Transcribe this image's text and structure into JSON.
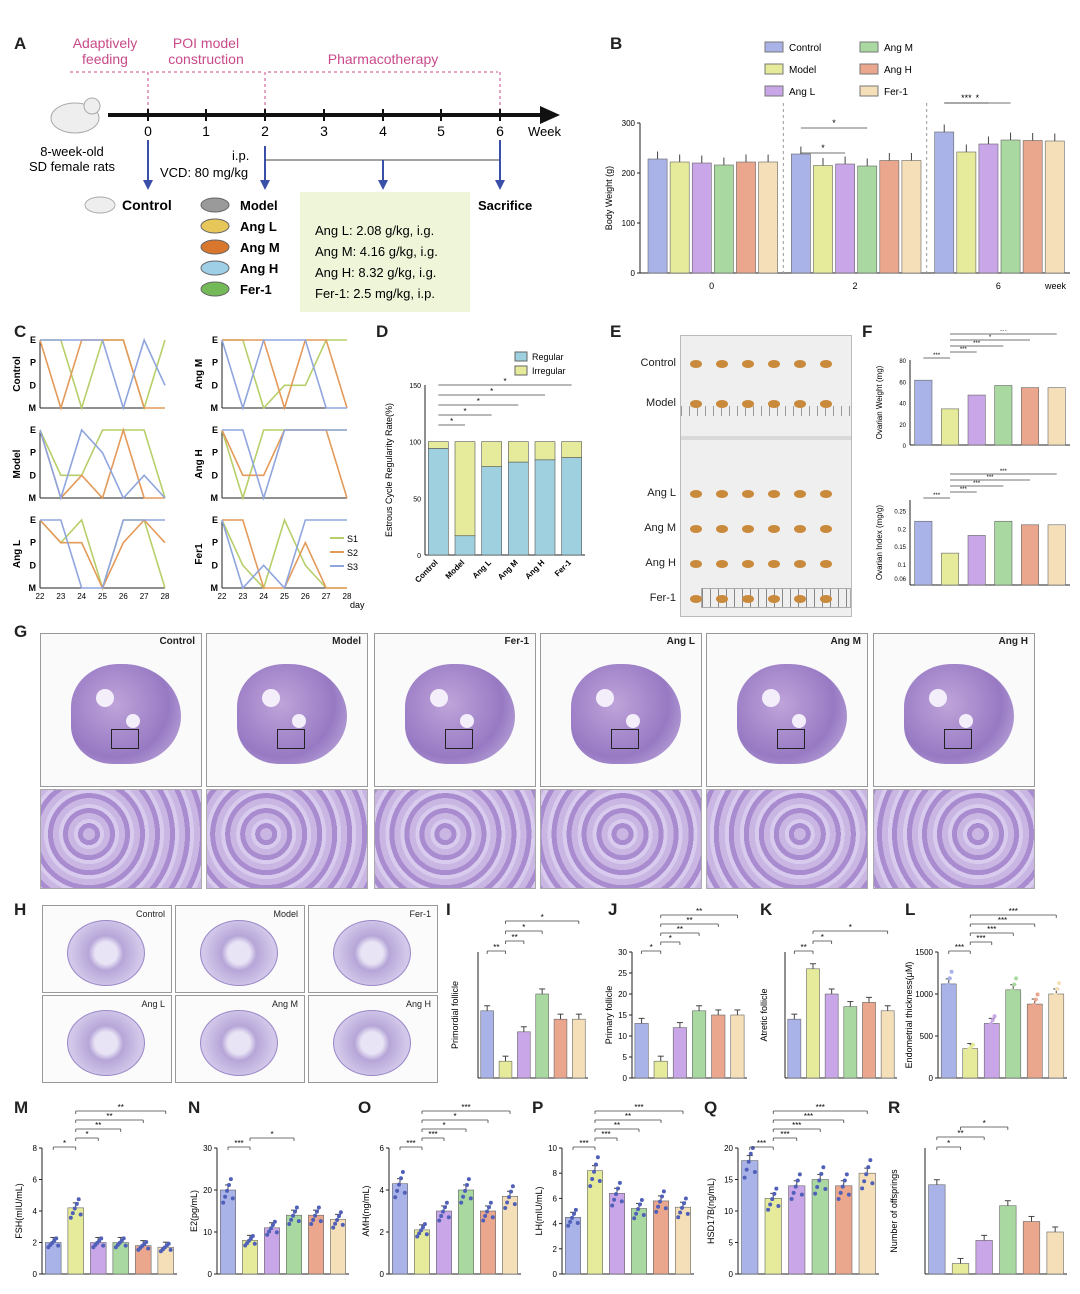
{
  "panel_letters": {
    "A": "A",
    "B": "B",
    "C": "C",
    "D": "D",
    "E": "E",
    "F": "F",
    "G": "G",
    "H": "H",
    "I": "I",
    "J": "J",
    "K": "K",
    "L": "L",
    "M": "M",
    "N": "N",
    "O": "O",
    "P": "P",
    "Q": "Q",
    "R": "R"
  },
  "colors": {
    "control": "#a9b3e8",
    "model": "#e5eb9a",
    "angL": "#c9a6e8",
    "angM": "#a9d9a0",
    "angH": "#eaa78e",
    "fer1": "#f4dfb8",
    "regular": "#9fd0e0",
    "irregular": "#e5eb9a"
  },
  "panelA": {
    "phases": [
      "Adaptively feeding",
      "POI model construction",
      "Pharmacotherapy"
    ],
    "weeks": [
      "0",
      "1",
      "2",
      "3",
      "4",
      "5",
      "6"
    ],
    "axis_unit": "Week",
    "rat_label": "8-week-old SD female rats",
    "injection": "i.p.",
    "vcd": "VCD: 80 mg/kg",
    "control": "Control",
    "sacrifice": "Sacrifice",
    "groups": [
      "Model",
      "Ang L",
      "Ang M",
      "Ang H",
      "Fer-1"
    ],
    "doses": [
      "Ang L: 2.08 g/kg, i.g.",
      "Ang M: 4.16 g/kg, i.g.",
      "Ang H: 8.32 g/kg, i.g.",
      "Fer-1: 2.5 mg/kg, i.p."
    ]
  },
  "legend_groups": [
    "Control",
    "Model",
    "Ang L",
    "Ang M",
    "Ang H",
    "Fer-1"
  ],
  "chart_data": [
    {
      "id": "B",
      "type": "bar",
      "categories": [
        "0",
        "2",
        "6"
      ],
      "xlabel": "week",
      "ylabel": "Body Weight (g)",
      "ylim": [
        0,
        300
      ],
      "yticks": [
        0,
        100,
        200,
        300
      ],
      "series": [
        {
          "name": "Control",
          "values": [
            228,
            238,
            282
          ]
        },
        {
          "name": "Model",
          "values": [
            222,
            215,
            242
          ]
        },
        {
          "name": "Ang L",
          "values": [
            220,
            218,
            258
          ]
        },
        {
          "name": "Ang M",
          "values": [
            216,
            214,
            266
          ]
        },
        {
          "name": "Ang H",
          "values": [
            222,
            225,
            265
          ]
        },
        {
          "name": "Fer-1",
          "values": [
            222,
            225,
            264
          ]
        }
      ],
      "significance": [
        "*",
        "*",
        "***",
        "*"
      ]
    },
    {
      "id": "C",
      "type": "line",
      "ylabels": [
        "M",
        "D",
        "P",
        "E"
      ],
      "xvalues": [
        "22",
        "23",
        "24",
        "25",
        "26",
        "27",
        "28"
      ],
      "xunit": "day",
      "legend": [
        "S1",
        "S2",
        "S3"
      ],
      "panels": [
        {
          "group": "Control",
          "S1": [
            3,
            3,
            0,
            3,
            3,
            0,
            3
          ],
          "S2": [
            3,
            0,
            3,
            3,
            3,
            0,
            0
          ],
          "S3": [
            3,
            3,
            3,
            3,
            0,
            3,
            1
          ]
        },
        {
          "group": "Ang M",
          "S1": [
            3,
            3,
            0,
            1,
            1,
            3,
            3
          ],
          "S2": [
            3,
            3,
            3,
            0,
            3,
            3,
            0
          ],
          "S3": [
            3,
            0,
            3,
            3,
            3,
            0,
            0
          ]
        },
        {
          "group": "Model",
          "S1": [
            3,
            1,
            1,
            3,
            3,
            3,
            0
          ],
          "S2": [
            3,
            0,
            1,
            0,
            3,
            0,
            0
          ],
          "S3": [
            3,
            0,
            3,
            2,
            0,
            1,
            0
          ]
        },
        {
          "group": "Ang H",
          "S1": [
            3,
            0,
            3,
            3,
            3,
            3,
            3
          ],
          "S2": [
            3,
            1,
            1,
            3,
            3,
            3,
            0
          ],
          "S3": [
            3,
            3,
            0,
            3,
            3,
            3,
            3
          ]
        },
        {
          "group": "Ang L",
          "S1": [
            3,
            2,
            3,
            0,
            3,
            3,
            0
          ],
          "S2": [
            3,
            2,
            2,
            0,
            2,
            3,
            2
          ],
          "S3": [
            3,
            3,
            0,
            0,
            3,
            3,
            3
          ]
        },
        {
          "group": "Fer1",
          "S1": [
            3,
            1,
            0,
            3,
            1,
            0,
            0
          ],
          "S2": [
            3,
            3,
            0,
            0,
            2,
            0,
            0
          ],
          "S3": [
            3,
            0,
            1,
            0,
            3,
            3,
            3
          ]
        }
      ]
    },
    {
      "id": "D",
      "type": "bar",
      "stacked": true,
      "categories": [
        "Control",
        "Model",
        "Ang L",
        "Ang M",
        "Ang H",
        "Fer-1"
      ],
      "ylabel": "Estrous Cycle Regularity Rate(%)",
      "ylim": [
        0,
        150
      ],
      "yticks": [
        0,
        50,
        100,
        150
      ],
      "series": [
        {
          "name": "Regular",
          "values": [
            94,
            17,
            78,
            82,
            84,
            86
          ]
        },
        {
          "name": "Irregular",
          "values": [
            6,
            83,
            22,
            18,
            16,
            14
          ]
        }
      ],
      "significance": [
        "*",
        "*",
        "*",
        "*",
        "*"
      ]
    },
    {
      "id": "F1",
      "type": "bar",
      "categories": [
        "Control",
        "Model",
        "Ang L",
        "Ang M",
        "Ang H",
        "Fer-1"
      ],
      "ylabel": "Ovarian Weight (mg)",
      "ylim": [
        0,
        80
      ],
      "yticks": [
        0,
        20,
        40,
        60,
        80
      ],
      "values": [
        61,
        34,
        47,
        56,
        54,
        54
      ],
      "significance": [
        "***",
        "***",
        "***",
        "*",
        "***"
      ]
    },
    {
      "id": "F2",
      "type": "bar",
      "categories": [
        "Control",
        "Model",
        "Ang L",
        "Ang M",
        "Ang H",
        "Fer-1"
      ],
      "ylabel": "Ovarian Index (mg/g)",
      "ylim": [
        0.04,
        0.28
      ],
      "yticks": [
        0.06,
        0.1,
        0.15,
        0.2,
        0.25
      ],
      "values": [
        0.22,
        0.13,
        0.18,
        0.22,
        0.21,
        0.21
      ],
      "significance": [
        "***",
        "***",
        "***",
        "***",
        "***"
      ]
    },
    {
      "id": "I",
      "type": "bar",
      "categories": [
        "Control",
        "Model",
        "Ang L",
        "Ang M",
        "Ang H",
        "Fer-1"
      ],
      "ylabel": "Primordial follicle",
      "ylim": [
        0,
        30
      ],
      "values": [
        16,
        4,
        11,
        20,
        14,
        14
      ],
      "significance": [
        "**",
        "**",
        "*",
        "*"
      ]
    },
    {
      "id": "J",
      "type": "bar",
      "categories": [
        "Control",
        "Model",
        "Ang L",
        "Ang M",
        "Ang H",
        "Fer-1"
      ],
      "ylabel": "Primary follicle",
      "ylim": [
        0,
        30
      ],
      "yticks": [
        0,
        5,
        10,
        15,
        20,
        25,
        30
      ],
      "values": [
        13,
        4,
        12,
        16,
        15,
        15
      ],
      "significance": [
        "*",
        "*",
        "**",
        "**",
        "**"
      ]
    },
    {
      "id": "K",
      "type": "bar",
      "categories": [
        "Control",
        "Model",
        "Ang L",
        "Ang M",
        "Ang H",
        "Fer-1"
      ],
      "ylabel": "Atretic follicle",
      "ylim": [
        0,
        30
      ],
      "values": [
        14,
        26,
        20,
        17,
        18,
        16
      ],
      "significance": [
        "**",
        "*",
        "*"
      ]
    },
    {
      "id": "L",
      "type": "bar",
      "categories": [
        "Control",
        "Model",
        "Ang L",
        "Ang M",
        "Ang H",
        "Fer-1"
      ],
      "ylabel": "Endometrial thickness(μM)",
      "ylim": [
        0,
        1500
      ],
      "yticks": [
        0,
        500,
        1000,
        1500
      ],
      "values": [
        1120,
        350,
        650,
        1050,
        880,
        1000
      ],
      "significance": [
        "***",
        "***",
        "***",
        "***",
        "***"
      ]
    },
    {
      "id": "M",
      "type": "bar",
      "categories": [
        "Control",
        "Model",
        "Ang L",
        "Ang M",
        "Ang H",
        "Fer-1"
      ],
      "ylabel": "FSH(mIU/mL)",
      "ylim": [
        0,
        8
      ],
      "yticks": [
        0,
        2,
        4,
        6,
        8
      ],
      "values": [
        2.0,
        4.2,
        2.0,
        2.0,
        1.8,
        1.7
      ],
      "significance": [
        "*",
        "*",
        "**",
        "**",
        "**"
      ]
    },
    {
      "id": "N",
      "type": "bar",
      "categories": [
        "Control",
        "Model",
        "Ang L",
        "Ang M",
        "Ang H",
        "Fer-1"
      ],
      "ylabel": "E2(pg/mL)",
      "ylim": [
        0,
        30
      ],
      "yticks": [
        0,
        10,
        20,
        30
      ],
      "values": [
        20,
        8,
        11,
        14,
        14,
        13
      ],
      "significance": [
        "***",
        "*"
      ]
    },
    {
      "id": "O",
      "type": "bar",
      "categories": [
        "Control",
        "Model",
        "Ang L",
        "Ang M",
        "Ang H",
        "Fer-1"
      ],
      "ylabel": "AMH(ng/mL)",
      "ylim": [
        0,
        6
      ],
      "yticks": [
        0,
        2,
        4,
        6
      ],
      "values": [
        4.3,
        2.1,
        3.0,
        4.0,
        3.0,
        3.7
      ],
      "significance": [
        "***",
        "***",
        "*",
        "*",
        "***"
      ]
    },
    {
      "id": "P",
      "type": "bar",
      "categories": [
        "Control",
        "Model",
        "Ang L",
        "Ang M",
        "Ang H",
        "Fer-1"
      ],
      "ylabel": "LH(mIU/mL)",
      "ylim": [
        0,
        10
      ],
      "yticks": [
        0,
        2,
        4,
        6,
        8,
        10
      ],
      "values": [
        4.5,
        8.2,
        6.4,
        5.2,
        5.8,
        5.3
      ],
      "significance": [
        "***",
        "***",
        "**",
        "**",
        "***"
      ]
    },
    {
      "id": "Q",
      "type": "bar",
      "categories": [
        "Control",
        "Model",
        "Ang L",
        "Ang M",
        "Ang H",
        "Fer-1"
      ],
      "ylabel": "HSD17B(ng/mL)",
      "ylim": [
        0,
        20
      ],
      "yticks": [
        0,
        5,
        10,
        15,
        20
      ],
      "values": [
        18,
        12,
        14,
        15,
        14,
        16
      ],
      "significance": [
        "***",
        "***",
        "***",
        "***",
        "***"
      ]
    },
    {
      "id": "R",
      "type": "bar",
      "categories": [
        "Control",
        "Model",
        "Ang L",
        "Ang M",
        "Ang H",
        "Fer-1"
      ],
      "ylabel": "Number of offsprings",
      "ylim": [
        0,
        12
      ],
      "values": [
        8.5,
        1,
        3.2,
        6.5,
        5,
        4
      ],
      "significance": [
        "*",
        "**",
        "*"
      ]
    }
  ],
  "panelE": {
    "groups_top": [
      "Control",
      "Model"
    ],
    "groups_bottom": [
      "Ang L",
      "Ang M",
      "Ang H",
      "Fer-1"
    ]
  },
  "panelG": {
    "titles": [
      "Control",
      "Model",
      "Fer-1",
      "Ang L",
      "Ang M",
      "Ang H"
    ]
  },
  "panelH": {
    "titles": [
      "Control",
      "Model",
      "Fer-1",
      "Ang L",
      "Ang M",
      "Ang H"
    ]
  }
}
